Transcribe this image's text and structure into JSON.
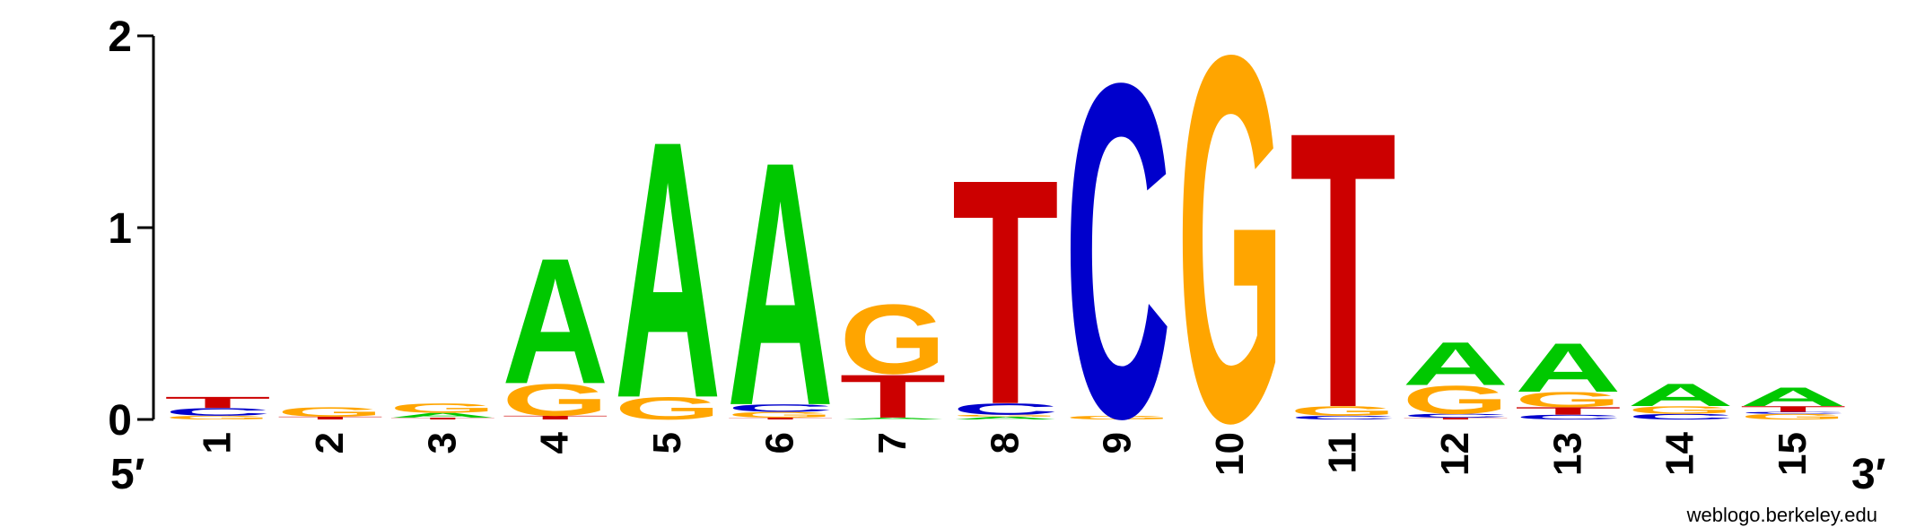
{
  "chart_data": {
    "type": "sequence-logo",
    "title": "",
    "xlabel": "",
    "ylabel": "",
    "ylim": [
      0,
      2
    ],
    "yticks": [
      "0",
      "1",
      "2"
    ],
    "x_start_label": "5′",
    "x_end_label": "3′",
    "credit": "weblogo.berkeley.edu",
    "colors": {
      "A": "#00c800",
      "C": "#0000cc",
      "G": "#ffa500",
      "T": "#cc0000"
    },
    "positions": [
      {
        "label": "1",
        "stack": [
          {
            "base": "G",
            "height": 0.02
          },
          {
            "base": "C",
            "height": 0.04
          },
          {
            "base": "T",
            "height": 0.06
          }
        ]
      },
      {
        "label": "2",
        "stack": [
          {
            "base": "T",
            "height": 0.015
          },
          {
            "base": "G",
            "height": 0.05
          }
        ]
      },
      {
        "label": "3",
        "stack": [
          {
            "base": "T",
            "height": 0.01
          },
          {
            "base": "A",
            "height": 0.025
          },
          {
            "base": "G",
            "height": 0.05
          }
        ]
      },
      {
        "label": "4",
        "stack": [
          {
            "base": "T",
            "height": 0.02
          },
          {
            "base": "G",
            "height": 0.17
          },
          {
            "base": "A",
            "height": 0.67
          }
        ]
      },
      {
        "label": "5",
        "stack": [
          {
            "base": "G",
            "height": 0.12
          },
          {
            "base": "A",
            "height": 1.37
          }
        ]
      },
      {
        "label": "6",
        "stack": [
          {
            "base": "T",
            "height": 0.01
          },
          {
            "base": "G",
            "height": 0.03
          },
          {
            "base": "C",
            "height": 0.04
          },
          {
            "base": "A",
            "height": 1.3
          }
        ]
      },
      {
        "label": "7",
        "stack": [
          {
            "base": "A",
            "height": 0.01
          },
          {
            "base": "T",
            "height": 0.23
          },
          {
            "base": "G",
            "height": 0.37
          }
        ]
      },
      {
        "label": "8",
        "stack": [
          {
            "base": "A",
            "height": 0.015
          },
          {
            "base": "G",
            "height": 0.01
          },
          {
            "base": "C",
            "height": 0.06
          },
          {
            "base": "T",
            "height": 1.2
          }
        ]
      },
      {
        "label": "9",
        "stack": [
          {
            "base": "G",
            "height": 0.02
          },
          {
            "base": "C",
            "height": 1.78
          }
        ]
      },
      {
        "label": "10",
        "stack": [
          {
            "base": "G",
            "height": 1.95
          }
        ]
      },
      {
        "label": "11",
        "stack": [
          {
            "base": "C",
            "height": 0.02
          },
          {
            "base": "G",
            "height": 0.05
          },
          {
            "base": "T",
            "height": 1.47
          }
        ]
      },
      {
        "label": "12",
        "stack": [
          {
            "base": "T",
            "height": 0.01
          },
          {
            "base": "C",
            "height": 0.02
          },
          {
            "base": "G",
            "height": 0.15
          },
          {
            "base": "A",
            "height": 0.23
          }
        ]
      },
      {
        "label": "13",
        "stack": [
          {
            "base": "C",
            "height": 0.025
          },
          {
            "base": "T",
            "height": 0.04
          },
          {
            "base": "G",
            "height": 0.08
          },
          {
            "base": "A",
            "height": 0.26
          }
        ]
      },
      {
        "label": "14",
        "stack": [
          {
            "base": "C",
            "height": 0.03
          },
          {
            "base": "G",
            "height": 0.04
          },
          {
            "base": "A",
            "height": 0.12
          }
        ]
      },
      {
        "label": "15",
        "stack": [
          {
            "base": "G",
            "height": 0.03
          },
          {
            "base": "C",
            "height": 0.01
          },
          {
            "base": "T",
            "height": 0.03
          },
          {
            "base": "A",
            "height": 0.1
          }
        ]
      }
    ]
  }
}
